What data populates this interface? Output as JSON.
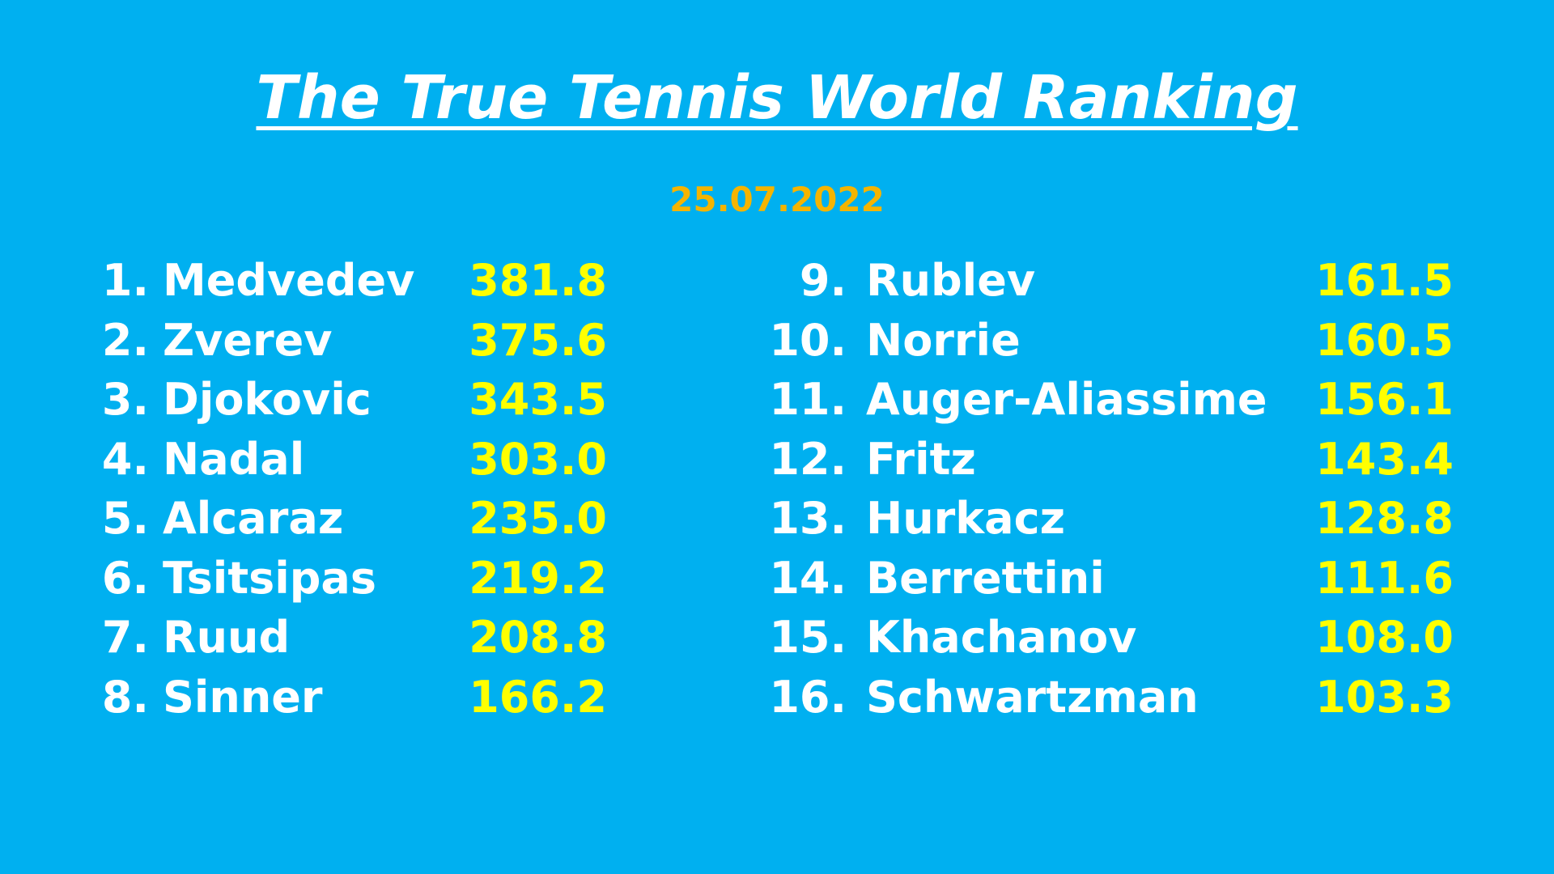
{
  "header": {
    "title": "The True Tennis World Ranking",
    "date": "25.07.2022"
  },
  "rankings": [
    {
      "rank": "1.",
      "name": "Medvedev",
      "score": "381.8"
    },
    {
      "rank": "2.",
      "name": "Zverev",
      "score": "375.6"
    },
    {
      "rank": "3.",
      "name": "Djokovic",
      "score": "343.5"
    },
    {
      "rank": "4.",
      "name": "Nadal",
      "score": "303.0"
    },
    {
      "rank": "5.",
      "name": "Alcaraz",
      "score": "235.0"
    },
    {
      "rank": "6.",
      "name": "Tsitsipas",
      "score": "219.2"
    },
    {
      "rank": "7.",
      "name": "Ruud",
      "score": "208.8"
    },
    {
      "rank": "8.",
      "name": "Sinner",
      "score": "166.2"
    },
    {
      "rank": "9.",
      "name": "Rublev",
      "score": "161.5"
    },
    {
      "rank": "10.",
      "name": "Norrie",
      "score": "160.5"
    },
    {
      "rank": "11.",
      "name": "Auger-Aliassime",
      "score": "156.1"
    },
    {
      "rank": "12.",
      "name": "Fritz",
      "score": "143.4"
    },
    {
      "rank": "13.",
      "name": "Hurkacz",
      "score": "128.8"
    },
    {
      "rank": "14.",
      "name": "Berrettini",
      "score": "111.6"
    },
    {
      "rank": "15.",
      "name": "Khachanov",
      "score": "108.0"
    },
    {
      "rank": "16.",
      "name": "Schwartzman",
      "score": "103.3"
    }
  ]
}
